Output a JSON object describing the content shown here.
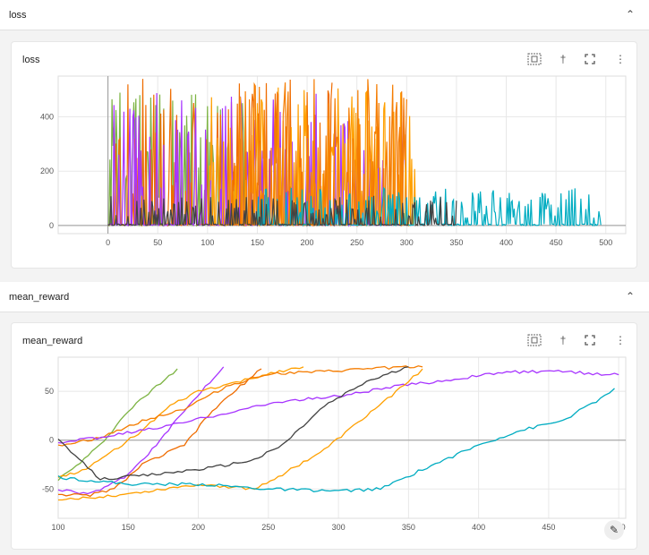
{
  "sections": [
    {
      "title": "loss",
      "collapse_icon": "chevron-up-icon"
    },
    {
      "title": "mean_reward",
      "collapse_icon": "chevron-up-icon"
    }
  ],
  "toolbar_icons": [
    "fit-domain-icon",
    "pin-icon",
    "fullscreen-icon",
    "more-vert-icon"
  ],
  "edit_icon": "pencil-icon",
  "chart_data": [
    {
      "type": "line",
      "title": "loss",
      "xlim": [
        -50,
        520
      ],
      "ylim": [
        -30,
        550
      ],
      "x_ticks": [
        0,
        50,
        100,
        150,
        200,
        250,
        300,
        350,
        400,
        450,
        500
      ],
      "y_ticks": [
        0,
        200,
        400
      ],
      "grid": true,
      "series": [
        {
          "color": "#7cb342",
          "x_range": [
            0,
            140
          ],
          "peak": 490,
          "density": 0.35
        },
        {
          "color": "#ef6c00",
          "x_range": [
            0,
            225
          ],
          "peak": 540,
          "density": 0.35
        },
        {
          "color": "#a734ff",
          "x_range": [
            0,
            300
          ],
          "peak": 500,
          "density": 0.3
        },
        {
          "color": "#ffa000",
          "x_range": [
            100,
            310
          ],
          "peak": 510,
          "density": 0.4
        },
        {
          "color": "#f57c00",
          "x_range": [
            120,
            300
          ],
          "peak": 540,
          "density": 0.4
        },
        {
          "color": "#00acc1",
          "x_range": [
            150,
            495
          ],
          "peak": 140,
          "density": 0.35
        },
        {
          "color": "#424242",
          "x_range": [
            0,
            350
          ],
          "peak": 110,
          "density": 0.25
        }
      ]
    },
    {
      "type": "line",
      "title": "mean_reward",
      "xlim": [
        100,
        505
      ],
      "ylim": [
        -80,
        85
      ],
      "x_ticks": [
        100,
        150,
        200,
        250,
        300,
        350,
        400,
        450,
        500
      ],
      "y_ticks": [
        -50,
        0,
        50
      ],
      "grid": true,
      "series": [
        {
          "color": "#7cb342",
          "x": [
            100,
            110,
            130,
            150,
            170,
            185
          ],
          "y": [
            -40,
            -30,
            -5,
            30,
            55,
            73
          ]
        },
        {
          "color": "#a734ff",
          "x": [
            100,
            115,
            130,
            150,
            170,
            190,
            205,
            218
          ],
          "y": [
            -50,
            -55,
            -52,
            -35,
            -5,
            30,
            55,
            75
          ]
        },
        {
          "color": "#ef6c00",
          "x": [
            100,
            120,
            140,
            160,
            190,
            210,
            230,
            245
          ],
          "y": [
            -55,
            -57,
            -50,
            -25,
            -5,
            30,
            55,
            73
          ]
        },
        {
          "color": "#ffa000",
          "x": [
            100,
            120,
            140,
            160,
            180,
            200,
            230,
            255,
            275
          ],
          "y": [
            -38,
            -30,
            -10,
            10,
            35,
            50,
            60,
            70,
            75
          ]
        },
        {
          "color": "#f57c00",
          "x": [
            100,
            130,
            160,
            190,
            220,
            250,
            290,
            330,
            360
          ],
          "y": [
            -5,
            2,
            20,
            32,
            55,
            68,
            70,
            74,
            75
          ]
        },
        {
          "color": "#a734ff",
          "x": [
            100,
            140,
            180,
            220,
            260,
            300,
            340,
            380,
            420,
            460,
            500
          ],
          "y": [
            -3,
            5,
            15,
            28,
            40,
            45,
            55,
            62,
            70,
            70,
            67
          ]
        },
        {
          "color": "#ffa000",
          "x": [
            100,
            150,
            200,
            240,
            260,
            290,
            320,
            350,
            360
          ],
          "y": [
            -62,
            -55,
            -45,
            -50,
            -35,
            -10,
            25,
            60,
            73
          ]
        },
        {
          "color": "#424242",
          "x": [
            100,
            130,
            170,
            210,
            240,
            260,
            290,
            320,
            350
          ],
          "y": [
            0,
            -40,
            -35,
            -28,
            -20,
            -5,
            35,
            60,
            75
          ]
        },
        {
          "color": "#00acc1",
          "x": [
            100,
            150,
            200,
            250,
            300,
            330,
            360,
            400,
            430,
            460,
            490,
            497
          ],
          "y": [
            -38,
            -45,
            -45,
            -50,
            -52,
            -50,
            -30,
            -5,
            10,
            20,
            45,
            53
          ]
        }
      ]
    }
  ]
}
